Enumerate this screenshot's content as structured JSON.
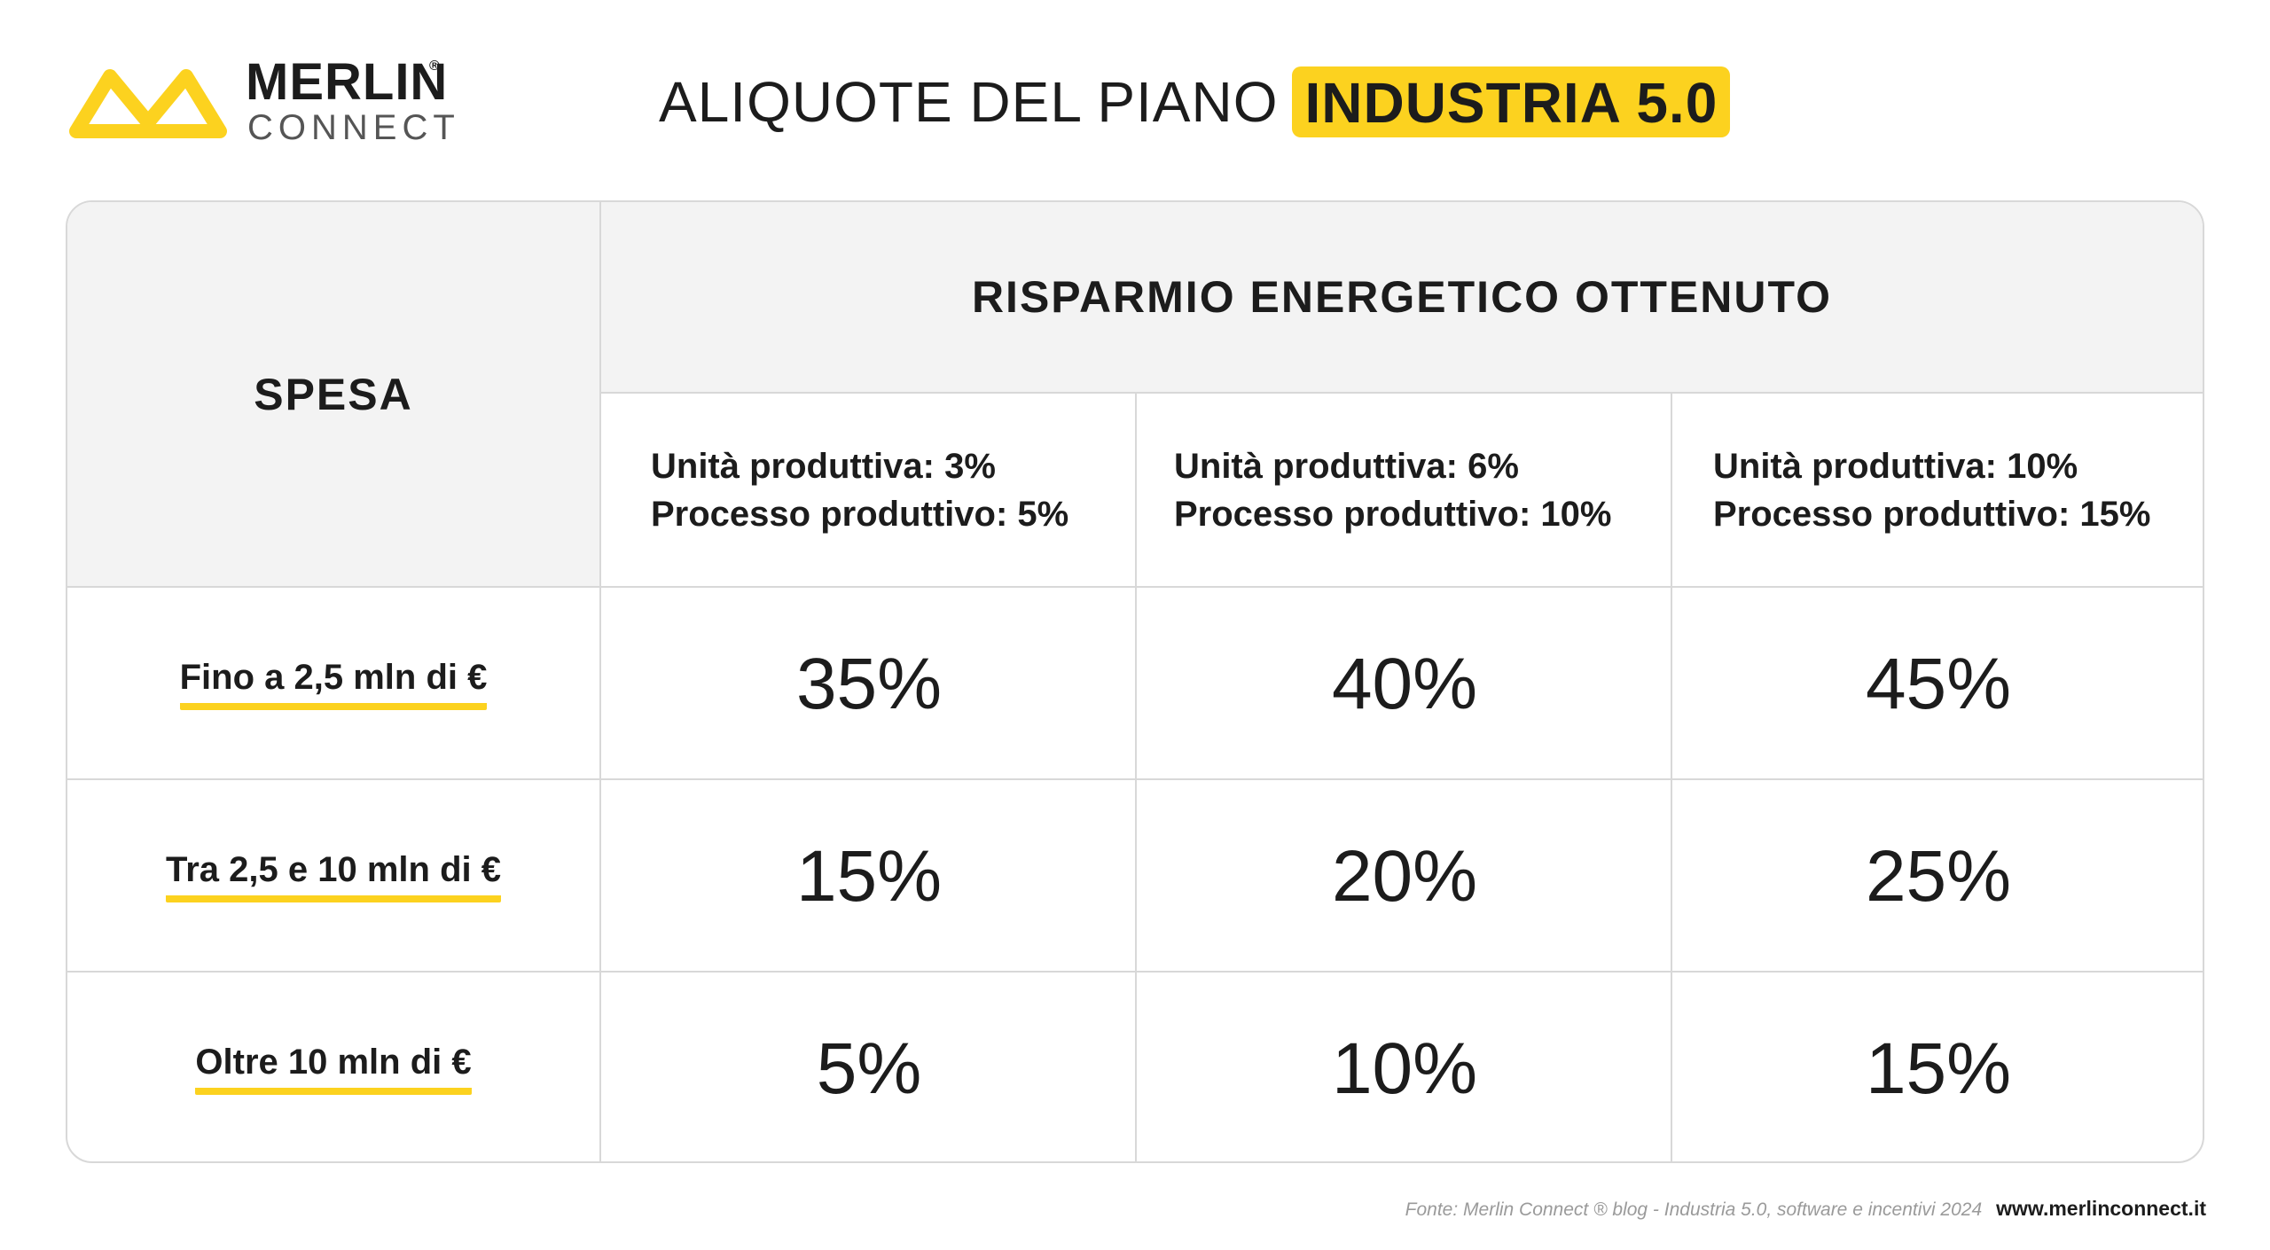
{
  "logo": {
    "name": "MERLIN",
    "registered": "®",
    "sub": "CONNECT",
    "icon": "merlin-infinity-icon",
    "color": "#fcd21f"
  },
  "title": {
    "light": "ALIQUOTE DEL PIANO",
    "highlight": "INDUSTRIA 5.0",
    "highlight_color": "#fcd21f"
  },
  "table": {
    "spesa_header": "SPESA",
    "savings_header": "RISPARMIO ENERGETICO OTTENUTO",
    "columns": [
      {
        "line1": "Unità produttiva: 3%",
        "line2": "Processo produttivo: 5%"
      },
      {
        "line1": "Unità produttiva: 6%",
        "line2": "Processo produttivo: 10%"
      },
      {
        "line1": "Unità produttiva: 10%",
        "line2": "Processo produttivo: 15%"
      }
    ],
    "rows": [
      {
        "label": "Fino a 2,5 mln di €",
        "values": [
          "35%",
          "40%",
          "45%"
        ]
      },
      {
        "label": "Tra 2,5 e 10 mln di €",
        "values": [
          "15%",
          "20%",
          "25%"
        ]
      },
      {
        "label": "Oltre 10 mln di €",
        "values": [
          "5%",
          "10%",
          "15%"
        ]
      }
    ]
  },
  "footer": {
    "source": "Fonte: Merlin Connect ® blog - Industria 5.0, software e incentivi 2024",
    "url": "www.merlinconnect.it"
  }
}
